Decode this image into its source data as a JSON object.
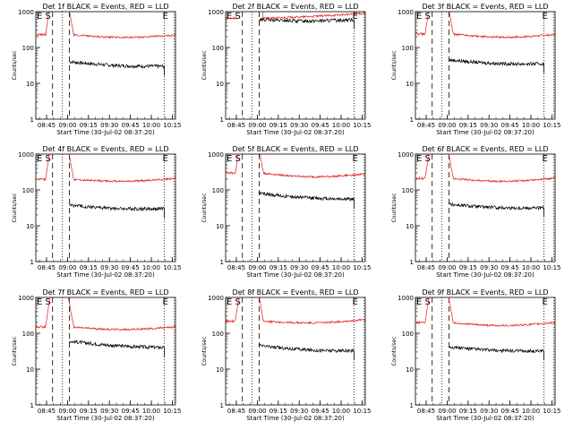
{
  "colors": {
    "events": "#000000",
    "lld": "#e41a1c",
    "axis": "#000000"
  },
  "common": {
    "ylabel": "Counts/sec",
    "xlabel": "Start Time (30-Jul-02 08:37:20)",
    "title_suffix": " BLACK = Events, RED = LLD",
    "x_tick_labels": [
      "08:45",
      "09:00",
      "09:15",
      "09:30",
      "09:45",
      "10:00",
      "10:15"
    ],
    "y_tick_labels": [
      "1",
      "10",
      "100",
      "1000"
    ],
    "markers": {
      "E_left": "E",
      "S": "S",
      "E_right": "E"
    }
  },
  "chart_data": [
    {
      "type": "line",
      "title": "Det 1f BLACK = Events, RED = LLD",
      "detector": "Det 1f",
      "xlim_min": [
        0,
        100
      ],
      "ylim": [
        1,
        1000
      ],
      "log_y": true,
      "series": [
        {
          "name": "Events",
          "baseline": 40,
          "end_value": 30,
          "dip": 0.9,
          "start_min": 24,
          "end_min": 92
        },
        {
          "name": "LLD",
          "baseline": 230,
          "end_value": 220,
          "dip": 0.85,
          "start_min": 0,
          "end_min": 100
        }
      ],
      "markers_min": {
        "E_left": 0,
        "S": 8,
        "dotted": 19,
        "dashed": 24,
        "E_right": 92
      }
    },
    {
      "type": "line",
      "title": "Det 2f BLACK = Events, RED = LLD",
      "detector": "Det 2f",
      "xlim_min": [
        0,
        100
      ],
      "ylim": [
        1,
        1000
      ],
      "log_y": true,
      "series": [
        {
          "name": "Events",
          "baseline": 600,
          "end_value": 600,
          "dip": 0.92,
          "start_min": 24,
          "end_min": 92
        },
        {
          "name": "LLD",
          "baseline": 650,
          "end_value": 900,
          "dip": 0.95,
          "start_min": 0,
          "end_min": 100
        }
      ],
      "markers_min": {
        "E_left": 0,
        "S": 8,
        "dotted": 19,
        "dashed": 24,
        "E_right": 92
      }
    },
    {
      "type": "line",
      "title": "Det 3f BLACK = Events, RED = LLD",
      "detector": "Det 3f",
      "xlim_min": [
        0,
        100
      ],
      "ylim": [
        1,
        1000
      ],
      "log_y": true,
      "series": [
        {
          "name": "Events",
          "baseline": 45,
          "end_value": 35,
          "dip": 0.9,
          "start_min": 24,
          "end_min": 92
        },
        {
          "name": "LLD",
          "baseline": 240,
          "end_value": 230,
          "dip": 0.82,
          "start_min": 0,
          "end_min": 100
        }
      ],
      "markers_min": {
        "E_left": 0,
        "S": 8,
        "dotted": 19,
        "dashed": 24,
        "E_right": 92
      }
    },
    {
      "type": "line",
      "title": "Det 4f BLACK = Events, RED = LLD",
      "detector": "Det 4f",
      "xlim_min": [
        0,
        100
      ],
      "ylim": [
        1,
        1000
      ],
      "log_y": true,
      "series": [
        {
          "name": "Events",
          "baseline": 38,
          "end_value": 30,
          "dip": 0.9,
          "start_min": 24,
          "end_min": 92
        },
        {
          "name": "LLD",
          "baseline": 200,
          "end_value": 210,
          "dip": 0.85,
          "start_min": 0,
          "end_min": 100
        }
      ],
      "markers_min": {
        "E_left": 0,
        "S": 8,
        "dotted": 19,
        "dashed": 24,
        "E_right": 92
      }
    },
    {
      "type": "line",
      "title": "Det 5f BLACK = Events, RED = LLD",
      "detector": "Det 5f",
      "xlim_min": [
        0,
        100
      ],
      "ylim": [
        1,
        1000
      ],
      "log_y": true,
      "series": [
        {
          "name": "Events",
          "baseline": 80,
          "end_value": 55,
          "dip": 0.9,
          "start_min": 24,
          "end_min": 92
        },
        {
          "name": "LLD",
          "baseline": 300,
          "end_value": 280,
          "dip": 0.8,
          "start_min": 0,
          "end_min": 100
        }
      ],
      "markers_min": {
        "E_left": 0,
        "S": 8,
        "dotted": 19,
        "dashed": 24,
        "E_right": 92
      }
    },
    {
      "type": "line",
      "title": "Det 6f BLACK = Events, RED = LLD",
      "detector": "Det 6f",
      "xlim_min": [
        0,
        100
      ],
      "ylim": [
        1,
        1000
      ],
      "log_y": true,
      "series": [
        {
          "name": "Events",
          "baseline": 40,
          "end_value": 32,
          "dip": 0.9,
          "start_min": 24,
          "end_min": 92
        },
        {
          "name": "LLD",
          "baseline": 210,
          "end_value": 215,
          "dip": 0.82,
          "start_min": 0,
          "end_min": 100
        }
      ],
      "markers_min": {
        "E_left": 0,
        "S": 8,
        "dotted": 19,
        "dashed": 24,
        "E_right": 92
      }
    },
    {
      "type": "line",
      "title": "Det 7f BLACK = Events, RED = LLD",
      "detector": "Det 7f",
      "xlim_min": [
        0,
        100
      ],
      "ylim": [
        1,
        1000
      ],
      "log_y": true,
      "series": [
        {
          "name": "Events",
          "baseline": 60,
          "end_value": 40,
          "dip": 0.9,
          "start_min": 24,
          "end_min": 92
        },
        {
          "name": "LLD",
          "baseline": 150,
          "end_value": 150,
          "dip": 0.85,
          "start_min": 0,
          "end_min": 100
        }
      ],
      "markers_min": {
        "E_left": 0,
        "S": 8,
        "dotted": 19,
        "dashed": 24,
        "E_right": 92
      }
    },
    {
      "type": "line",
      "title": "Det 8f BLACK = Events, RED = LLD",
      "detector": "Det 8f",
      "xlim_min": [
        0,
        100
      ],
      "ylim": [
        1,
        1000
      ],
      "log_y": true,
      "series": [
        {
          "name": "Events",
          "baseline": 45,
          "end_value": 32,
          "dip": 0.9,
          "start_min": 24,
          "end_min": 92
        },
        {
          "name": "LLD",
          "baseline": 220,
          "end_value": 240,
          "dip": 0.85,
          "start_min": 0,
          "end_min": 100
        }
      ],
      "markers_min": {
        "E_left": 0,
        "S": 8,
        "dotted": 19,
        "dashed": 24,
        "E_right": 92
      }
    },
    {
      "type": "line",
      "title": "Det 9f BLACK = Events, RED = LLD",
      "detector": "Det 9f",
      "xlim_min": [
        0,
        100
      ],
      "ylim": [
        1,
        1000
      ],
      "log_y": true,
      "series": [
        {
          "name": "Events",
          "baseline": 42,
          "end_value": 32,
          "dip": 0.9,
          "start_min": 24,
          "end_min": 92
        },
        {
          "name": "LLD",
          "baseline": 200,
          "end_value": 200,
          "dip": 0.82,
          "start_min": 0,
          "end_min": 100
        }
      ],
      "markers_min": {
        "E_left": 0,
        "S": 8,
        "dotted": 19,
        "dashed": 24,
        "E_right": 92
      }
    }
  ]
}
